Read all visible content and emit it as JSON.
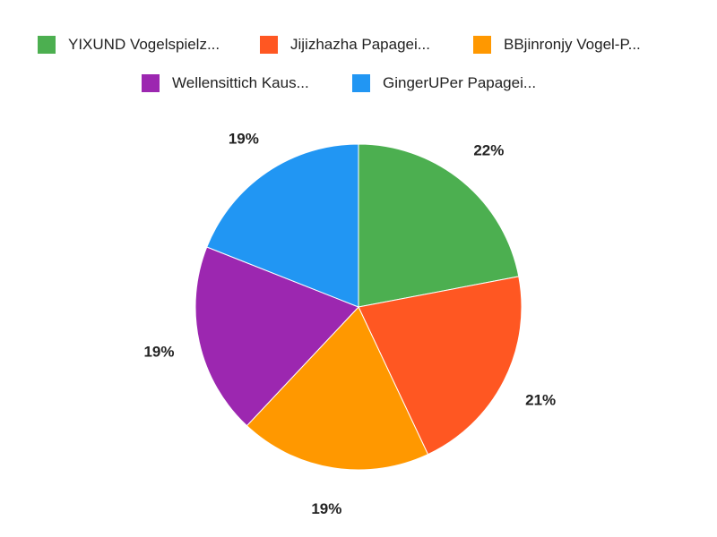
{
  "chart_data": {
    "type": "pie",
    "title": "",
    "legend_position": "top",
    "start_angle": "12 o'clock, clockwise",
    "slices": [
      {
        "label": "YIXUND Vogelspielz...",
        "value": 22,
        "display": "22%",
        "color": "#4CAF50"
      },
      {
        "label": "Jijizhazha Papagei...",
        "value": 21,
        "display": "21%",
        "color": "#FF5722"
      },
      {
        "label": "BBjinronjy Vogel-P...",
        "value": 19,
        "display": "19%",
        "color": "#FF9800"
      },
      {
        "label": "Wellensittich Kaus...",
        "value": 19,
        "display": "19%",
        "color": "#9C27B0"
      },
      {
        "label": "GingerUPer Papagei...",
        "value": 19,
        "display": "19%",
        "color": "#2196F3"
      }
    ]
  }
}
